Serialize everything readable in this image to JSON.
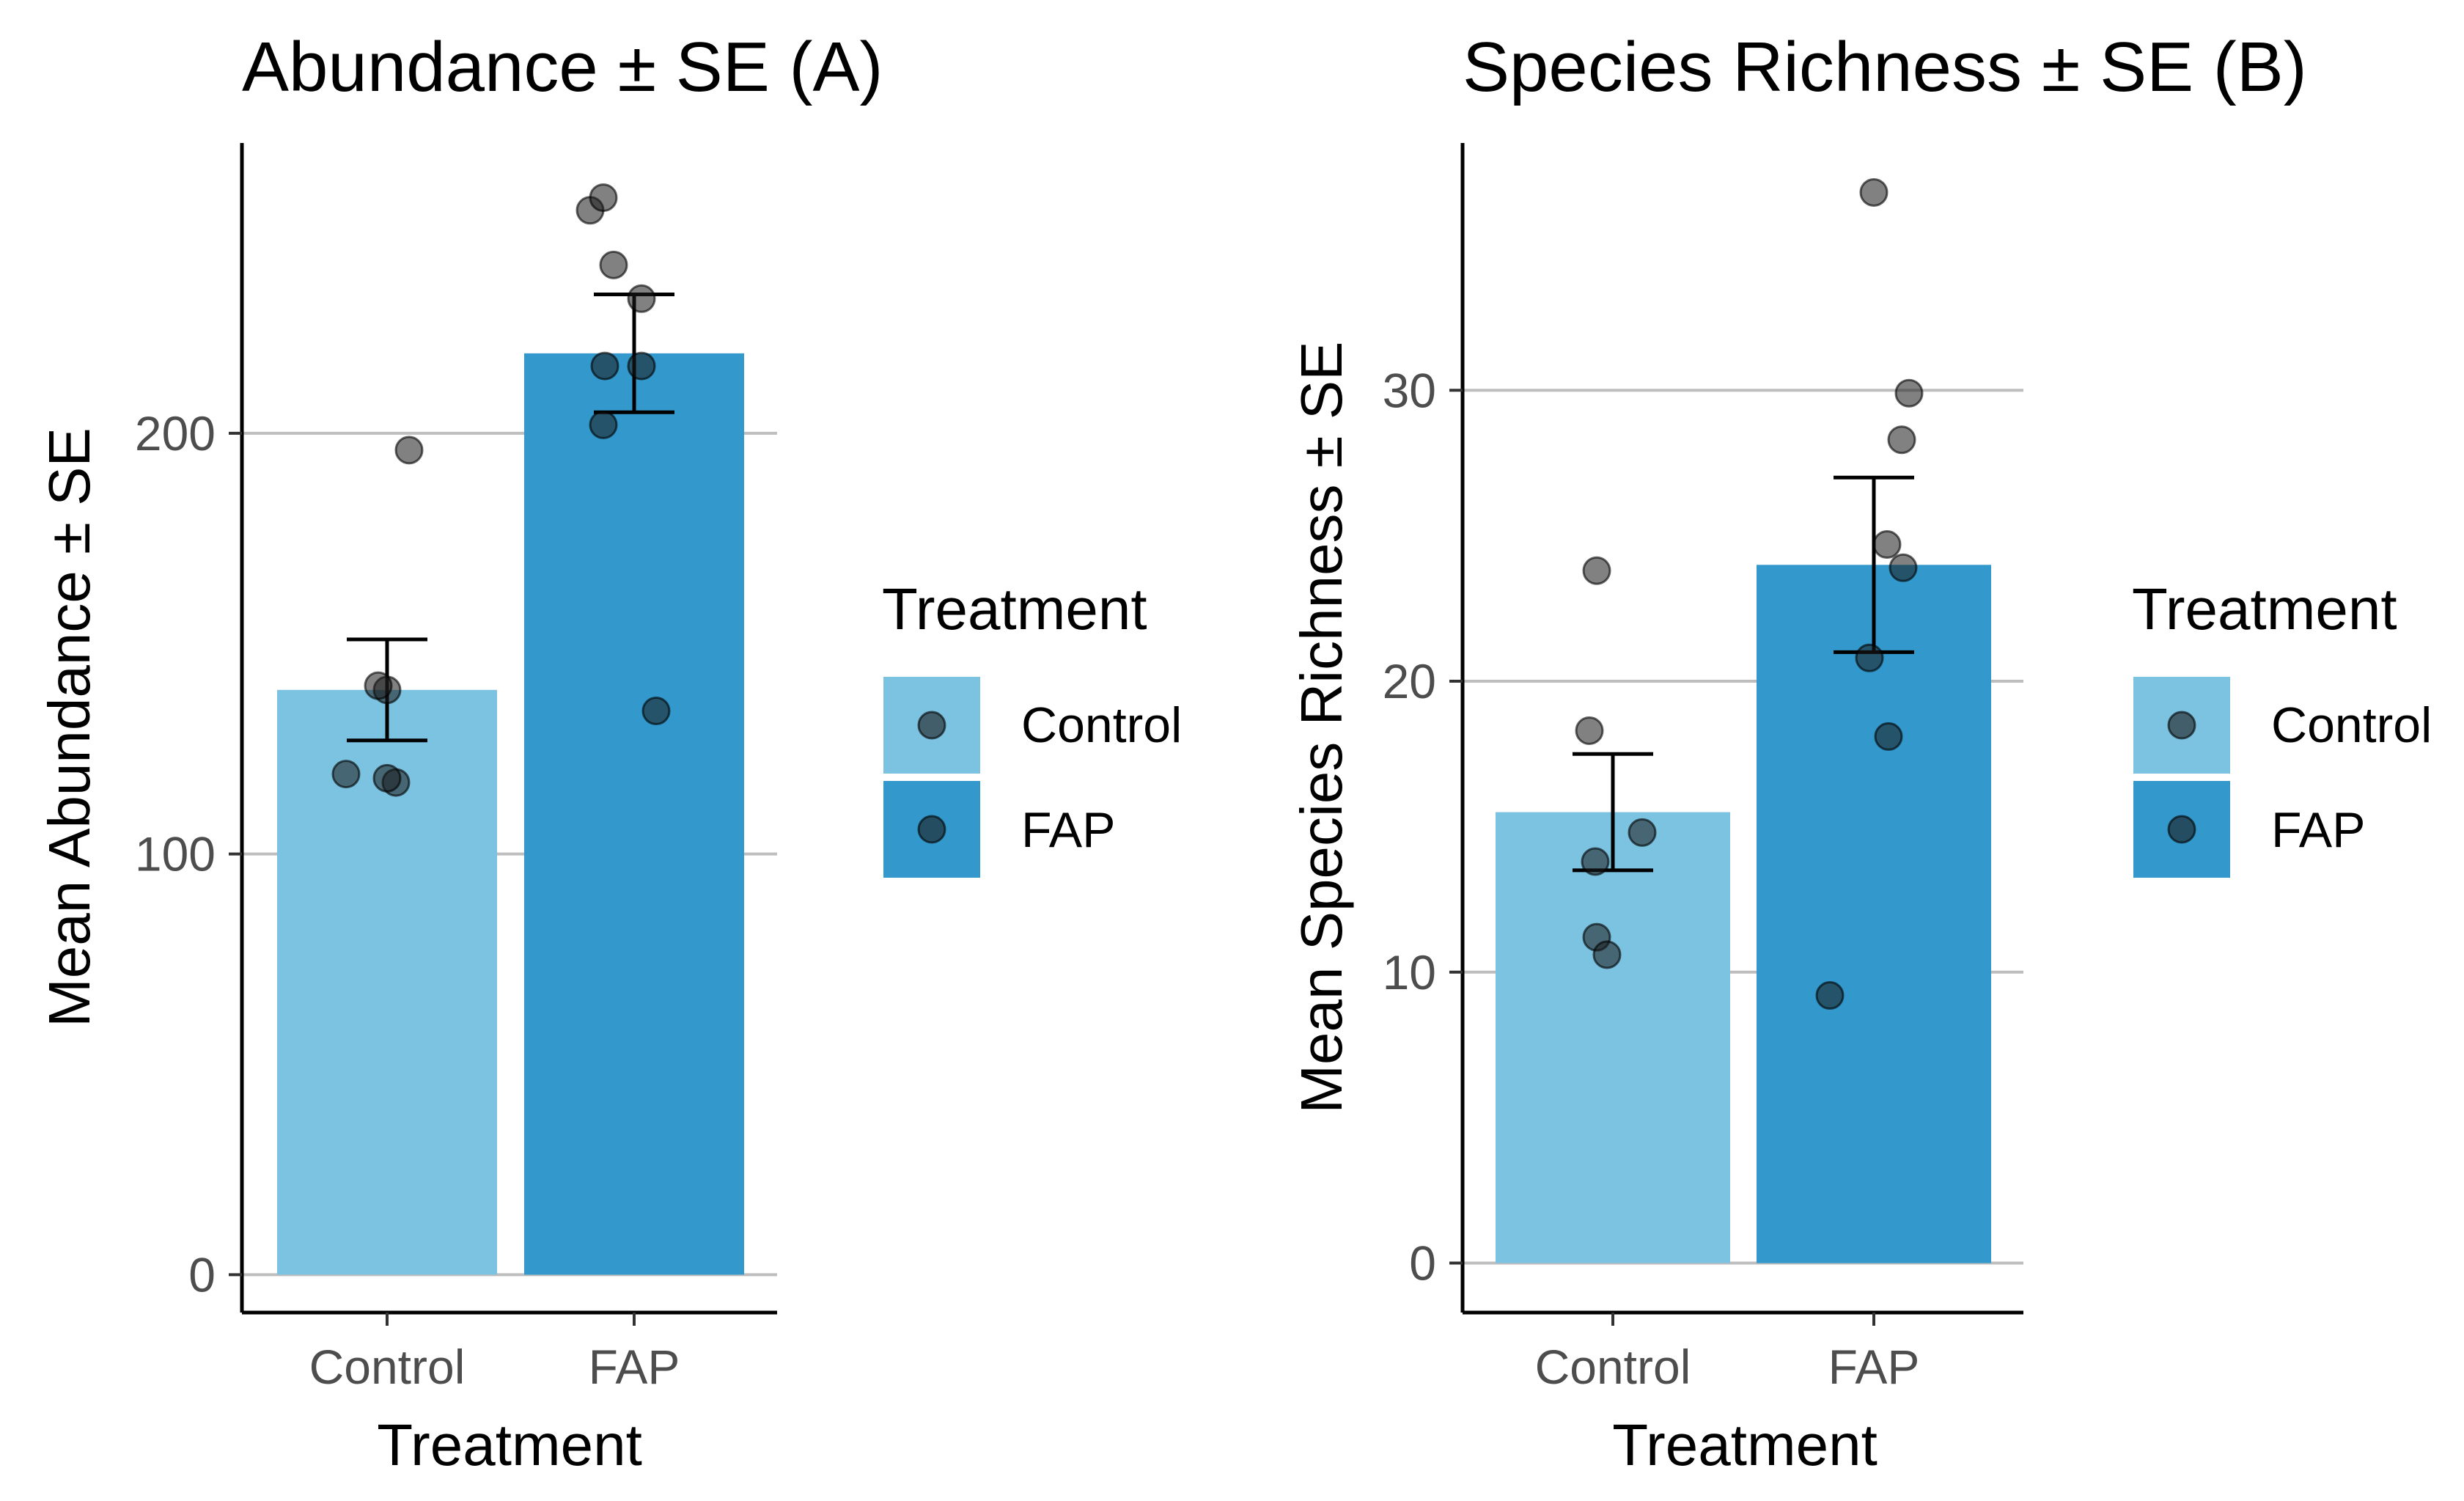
{
  "colors": {
    "control": "#7cc3e1",
    "fap": "#3399cc",
    "grid": "#bebebe",
    "point_fill": "#1a1a1a"
  },
  "chart_data": [
    {
      "type": "bar",
      "id": "A",
      "title": "Abundance ± SE (A)",
      "xlabel": "Treatment",
      "ylabel": "Mean Abundance ± SE",
      "categories": [
        "Control",
        "FAP"
      ],
      "ylim": [
        -9,
        269
      ],
      "yticks": [
        0,
        100,
        200
      ],
      "yticklabels": [
        "0",
        "100",
        "200"
      ],
      "grid": "horizontal major",
      "series": [
        {
          "name": "Mean",
          "values": [
            139,
            219
          ]
        }
      ],
      "error_bars": [
        {
          "low": 127,
          "high": 151
        },
        {
          "low": 205,
          "high": 233
        }
      ],
      "points": [
        [
          139,
          140,
          119,
          117,
          118,
          196
        ],
        [
          253,
          256,
          240,
          232,
          216,
          216,
          202,
          134
        ]
      ],
      "legend": {
        "title": "Treatment",
        "entries": [
          "Control",
          "FAP"
        ],
        "position": "right"
      }
    },
    {
      "type": "bar",
      "id": "B",
      "title": "Species Richness ± SE (B)",
      "xlabel": "Treatment",
      "ylabel": "Mean Species Richness ± SE",
      "categories": [
        "Control",
        "FAP"
      ],
      "ylim": [
        -1.7,
        38.5
      ],
      "yticks": [
        0,
        10,
        20,
        30
      ],
      "yticklabels": [
        "0",
        "10",
        "20",
        "30"
      ],
      "grid": "horizontal major",
      "series": [
        {
          "name": "Mean",
          "values": [
            15.5,
            24
          ]
        }
      ],
      "error_bars": [
        {
          "low": 13.5,
          "high": 17.5
        },
        {
          "low": 21,
          "high": 27
        }
      ],
      "points": [
        [
          23.8,
          18.3,
          14.8,
          13.8,
          11.2,
          10.6
        ],
        [
          36.8,
          29.9,
          28.3,
          24.7,
          23.9,
          20.8,
          18.1,
          9.2
        ]
      ],
      "legend": {
        "title": "Treatment",
        "entries": [
          "Control",
          "FAP"
        ],
        "position": "right"
      }
    }
  ]
}
